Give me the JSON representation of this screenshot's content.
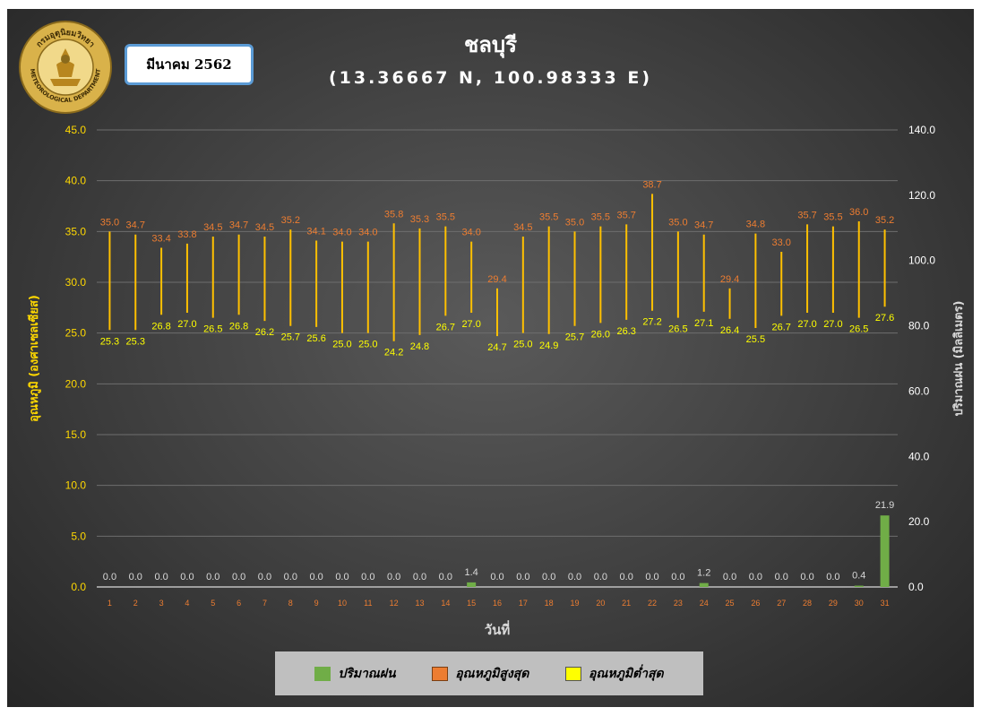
{
  "header": {
    "month_label": "มีนาคม 2562",
    "title": "ชลบุรี",
    "subtitle": "(13.36667 N, 100.98333 E)",
    "logo_text": "กรมอุตุนิยมวิทยา",
    "logo_subtext": "METEOROLOGICAL DEPARTMENT"
  },
  "chart_data": {
    "type": "bar",
    "title": "ชลบุรี",
    "subtitle": "(13.36667 N, 100.98333 E)",
    "xlabel": "วันที่",
    "ylabel_left": "อุณหภูมิ (องศาเซลเซียส)",
    "ylabel_right": "ปริมาณฝน (มิลลิเมตร)",
    "ylim_left": [
      0,
      45
    ],
    "ylim_right": [
      0,
      140
    ],
    "left_ticks": [
      "0.0",
      "5.0",
      "10.0",
      "15.0",
      "20.0",
      "25.0",
      "30.0",
      "35.0",
      "40.0",
      "45.0"
    ],
    "right_ticks": [
      "0.0",
      "20.0",
      "40.0",
      "60.0",
      "80.0",
      "100.0",
      "120.0",
      "140.0"
    ],
    "categories": [
      "1",
      "2",
      "3",
      "4",
      "5",
      "6",
      "7",
      "8",
      "9",
      "10",
      "11",
      "12",
      "13",
      "14",
      "15",
      "16",
      "17",
      "18",
      "19",
      "20",
      "21",
      "22",
      "23",
      "24",
      "25",
      "26",
      "27",
      "28",
      "29",
      "30",
      "31"
    ],
    "series": [
      {
        "name": "ปริมาณฝน",
        "color": "#70ad47",
        "axis": "right",
        "values": [
          0.0,
          0.0,
          0.0,
          0.0,
          0.0,
          0.0,
          0.0,
          0.0,
          0.0,
          0.0,
          0.0,
          0.0,
          0.0,
          0.0,
          1.4,
          0.0,
          0.0,
          0.0,
          0.0,
          0.0,
          0.0,
          0.0,
          0.0,
          1.2,
          0.0,
          0.0,
          0.0,
          0.0,
          0.0,
          0.4,
          21.9
        ]
      },
      {
        "name": "อุณหภูมิสูงสุด",
        "color": "#ed7d31",
        "axis": "left",
        "values": [
          35.0,
          34.7,
          33.4,
          33.8,
          34.5,
          34.7,
          34.5,
          35.2,
          34.1,
          34.0,
          34.0,
          35.8,
          35.3,
          35.5,
          34.0,
          29.4,
          34.5,
          35.5,
          35.0,
          35.5,
          35.7,
          38.7,
          35.0,
          34.7,
          29.4,
          34.8,
          33.0,
          35.7,
          35.5,
          36.0,
          35.2
        ]
      },
      {
        "name": "อุณหภูมิต่ำสุด",
        "color": "#ffff00",
        "axis": "left",
        "values": [
          25.3,
          25.3,
          26.8,
          27.0,
          26.5,
          26.8,
          26.2,
          25.7,
          25.6,
          25.0,
          25.0,
          24.2,
          24.8,
          26.7,
          27.0,
          24.7,
          25.0,
          24.9,
          25.7,
          26.0,
          26.3,
          27.2,
          26.5,
          27.1,
          26.4,
          25.5,
          26.7,
          27.0,
          27.0,
          26.5,
          27.6
        ]
      }
    ],
    "range_bar_color": "#ffc000",
    "grid": true,
    "legend_position": "bottom"
  }
}
